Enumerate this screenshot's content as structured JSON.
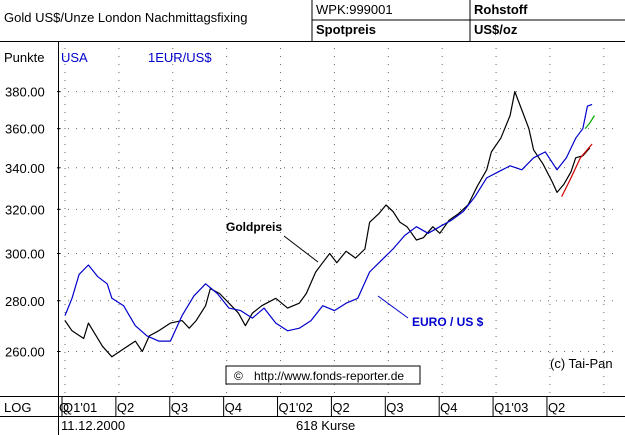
{
  "header": {
    "title": "Gold US$/Unze London Nachmittagsfixing",
    "wpk": "WPK:999001",
    "spot": "Spotpreis",
    "category": "Rohstoff",
    "unit": "US$/oz"
  },
  "chart_data": {
    "type": "line",
    "scale": "log",
    "ylabel": "Punkte",
    "left_axis_label": "USA",
    "right_axis_label": "1EUR/US$",
    "ylim": [
      244,
      405
    ],
    "yticks": [
      260,
      280,
      300,
      320,
      340,
      360,
      380
    ],
    "ytick_labels": [
      "260.00",
      "280.00",
      "300.00",
      "320.00",
      "340.00",
      "360.00",
      "380.00"
    ],
    "x_scale_label": "LOG",
    "quarter_labels": [
      "Q1'01",
      "Q2",
      "Q3",
      "Q4",
      "Q1'02",
      "Q2",
      "Q3",
      "Q4",
      "Q1'03",
      "Q2"
    ],
    "start_date": "11.12.2000",
    "count_label": "618 Kurse",
    "annotations": {
      "gold": "Goldpreis",
      "euro": "EURO / US $",
      "copyright": "(c) Tai-Pan",
      "url": "http://www.fonds-reporter.de",
      "url_symbol": "©"
    },
    "series": [
      {
        "name": "Goldpreis",
        "color": "#000000",
        "points": [
          [
            0,
            272
          ],
          [
            0.3,
            268
          ],
          [
            0.8,
            265
          ],
          [
            1.0,
            271
          ],
          [
            1.2,
            268
          ],
          [
            1.6,
            262
          ],
          [
            2.0,
            258
          ],
          [
            2.5,
            261
          ],
          [
            3.0,
            264
          ],
          [
            3.3,
            260
          ],
          [
            3.6,
            266
          ],
          [
            4.0,
            268
          ],
          [
            4.5,
            271
          ],
          [
            5.0,
            272
          ],
          [
            5.3,
            269
          ],
          [
            5.6,
            272
          ],
          [
            6.0,
            278
          ],
          [
            6.2,
            285
          ],
          [
            6.6,
            283
          ],
          [
            7.0,
            279
          ],
          [
            7.4,
            275
          ],
          [
            7.7,
            270
          ],
          [
            8.0,
            275
          ],
          [
            8.4,
            278
          ],
          [
            9.0,
            281
          ],
          [
            9.5,
            277
          ],
          [
            10.0,
            279
          ],
          [
            10.3,
            283
          ],
          [
            10.7,
            292
          ],
          [
            11.0,
            296
          ],
          [
            11.3,
            300
          ],
          [
            11.6,
            296
          ],
          [
            12.0,
            301
          ],
          [
            12.4,
            298
          ],
          [
            12.8,
            302
          ],
          [
            13.0,
            314
          ],
          [
            13.4,
            318
          ],
          [
            13.7,
            322
          ],
          [
            14.0,
            319
          ],
          [
            14.3,
            314
          ],
          [
            14.6,
            312
          ],
          [
            15.0,
            306
          ],
          [
            15.3,
            307
          ],
          [
            15.7,
            312
          ],
          [
            16.0,
            309
          ],
          [
            16.4,
            315
          ],
          [
            16.8,
            318
          ],
          [
            17.2,
            322
          ],
          [
            17.6,
            331
          ],
          [
            18.0,
            339
          ],
          [
            18.2,
            348
          ],
          [
            18.6,
            355
          ],
          [
            19.0,
            367
          ],
          [
            19.2,
            380
          ],
          [
            19.5,
            370
          ],
          [
            19.8,
            360
          ],
          [
            20.0,
            349
          ],
          [
            20.4,
            342
          ],
          [
            20.8,
            333
          ],
          [
            21.0,
            328
          ],
          [
            21.3,
            332
          ],
          [
            21.6,
            338
          ],
          [
            21.8,
            345
          ],
          [
            22.1,
            346
          ],
          [
            22.4,
            350
          ]
        ]
      },
      {
        "name": "EURO / US $",
        "color": "#0000cc",
        "points": [
          [
            0,
            274
          ],
          [
            0.3,
            281
          ],
          [
            0.6,
            291
          ],
          [
            1.0,
            295
          ],
          [
            1.4,
            290
          ],
          [
            1.8,
            287
          ],
          [
            2.0,
            281
          ],
          [
            2.5,
            278
          ],
          [
            3.0,
            270
          ],
          [
            3.5,
            266
          ],
          [
            4.0,
            264
          ],
          [
            4.5,
            264
          ],
          [
            5.0,
            274
          ],
          [
            5.5,
            282
          ],
          [
            6.0,
            287
          ],
          [
            6.5,
            283
          ],
          [
            7.0,
            277
          ],
          [
            7.5,
            276
          ],
          [
            8.0,
            273
          ],
          [
            8.5,
            277
          ],
          [
            9.0,
            271
          ],
          [
            9.5,
            268
          ],
          [
            10.0,
            269
          ],
          [
            10.5,
            272
          ],
          [
            11.0,
            278
          ],
          [
            11.5,
            276
          ],
          [
            12.0,
            279
          ],
          [
            12.5,
            281
          ],
          [
            13.0,
            292
          ],
          [
            13.5,
            297
          ],
          [
            14.0,
            302
          ],
          [
            14.5,
            308
          ],
          [
            15.0,
            312
          ],
          [
            15.5,
            309
          ],
          [
            16.0,
            312
          ],
          [
            16.5,
            315
          ],
          [
            17.0,
            319
          ],
          [
            17.5,
            326
          ],
          [
            18.0,
            335
          ],
          [
            18.5,
            338
          ],
          [
            19.0,
            341
          ],
          [
            19.5,
            339
          ],
          [
            20.0,
            345
          ],
          [
            20.5,
            348
          ],
          [
            21.0,
            339
          ],
          [
            21.4,
            345
          ],
          [
            21.8,
            355
          ],
          [
            22.1,
            360
          ],
          [
            22.3,
            372
          ],
          [
            22.5,
            373
          ]
        ]
      },
      {
        "name": "",
        "color": "#cc0000",
        "points": [
          [
            21.2,
            326
          ],
          [
            21.6,
            335
          ],
          [
            22.0,
            345
          ],
          [
            22.5,
            352
          ]
        ]
      },
      {
        "name": "",
        "color": "#00aa00",
        "points": [
          [
            22.2,
            360
          ],
          [
            22.4,
            363
          ],
          [
            22.6,
            367
          ]
        ]
      }
    ]
  }
}
